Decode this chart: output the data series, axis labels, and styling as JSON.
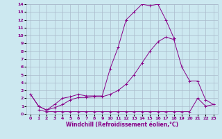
{
  "xlabel": "Windchill (Refroidissement éolien,°C)",
  "bg_color": "#cce8f0",
  "grid_color": "#aabbcc",
  "line_color": "#880088",
  "xlim": [
    -0.5,
    23.5
  ],
  "ylim": [
    0,
    14
  ],
  "xticks": [
    0,
    1,
    2,
    3,
    4,
    5,
    6,
    7,
    8,
    9,
    10,
    11,
    12,
    13,
    14,
    15,
    16,
    17,
    18,
    19,
    20,
    21,
    22,
    23
  ],
  "yticks": [
    0,
    1,
    2,
    3,
    4,
    5,
    6,
    7,
    8,
    9,
    10,
    11,
    12,
    13,
    14
  ],
  "line1_x": [
    0,
    1,
    2,
    3,
    4,
    5,
    6,
    7,
    8,
    9,
    10,
    11,
    12,
    13,
    14,
    15,
    16,
    17,
    18,
    19,
    20,
    21,
    22,
    23
  ],
  "line1_y": [
    2.5,
    1.0,
    0.5,
    0.8,
    1.2,
    1.8,
    2.1,
    2.1,
    2.2,
    2.2,
    2.5,
    3.0,
    3.8,
    5.0,
    6.5,
    8.0,
    9.2,
    9.8,
    9.5,
    6.0,
    4.2,
    4.2,
    1.8,
    1.2
  ],
  "line2_x": [
    0,
    1,
    2,
    3,
    4,
    5,
    6,
    7,
    8,
    9,
    10,
    11,
    12,
    13,
    14,
    15,
    16,
    17,
    18,
    19,
    20,
    21,
    22,
    23
  ],
  "line2_y": [
    2.5,
    1.0,
    0.5,
    1.2,
    2.0,
    2.2,
    2.5,
    2.3,
    2.3,
    2.3,
    5.8,
    8.5,
    12.0,
    13.0,
    14.0,
    13.8,
    14.0,
    12.0,
    9.7,
    null,
    null,
    null,
    null,
    null
  ],
  "line3_x": [
    1,
    2,
    3,
    4,
    5,
    6,
    7,
    8,
    9,
    10,
    11,
    12,
    13,
    14,
    15,
    16,
    17,
    18,
    19,
    20,
    21,
    22,
    23
  ],
  "line3_y": [
    0.5,
    0.3,
    0.3,
    0.3,
    0.3,
    0.3,
    0.3,
    0.3,
    0.3,
    0.3,
    0.3,
    0.3,
    0.3,
    0.3,
    0.3,
    0.3,
    0.3,
    0.3,
    0.3,
    0.3,
    2.0,
    1.0,
    1.2
  ]
}
